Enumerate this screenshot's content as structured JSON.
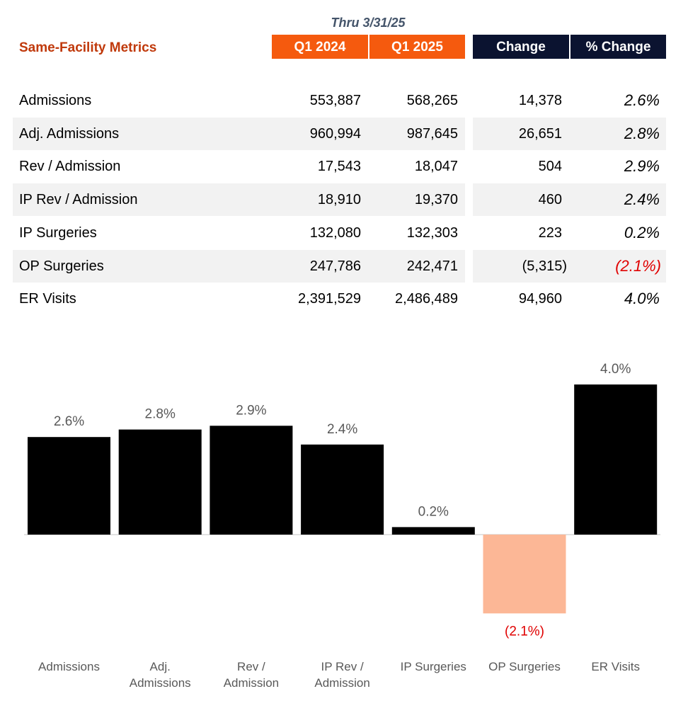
{
  "table": {
    "period_note": "Thru 3/31/25",
    "title": "Same-Facility Metrics",
    "headers": {
      "q1_2024": "Q1 2024",
      "q1_2025": "Q1 2025",
      "change": "Change",
      "pct_change": "% Change"
    },
    "rows": [
      {
        "metric": "Admissions",
        "q1_2024": "553,887",
        "q1_2025": "568,265",
        "change": "14,378",
        "pct_change": "2.6%",
        "negative": false
      },
      {
        "metric": "Adj. Admissions",
        "q1_2024": "960,994",
        "q1_2025": "987,645",
        "change": "26,651",
        "pct_change": "2.8%",
        "negative": false
      },
      {
        "metric": "Rev / Admission",
        "q1_2024": "17,543",
        "q1_2025": "18,047",
        "change": "504",
        "pct_change": "2.9%",
        "negative": false
      },
      {
        "metric": "IP Rev / Admission",
        "q1_2024": "18,910",
        "q1_2025": "19,370",
        "change": "460",
        "pct_change": "2.4%",
        "negative": false
      },
      {
        "metric": "IP Surgeries",
        "q1_2024": "132,080",
        "q1_2025": "132,303",
        "change": "223",
        "pct_change": "0.2%",
        "negative": false
      },
      {
        "metric": "OP Surgeries",
        "q1_2024": "247,786",
        "q1_2025": "242,471",
        "change": "(5,315)",
        "pct_change": "(2.1%)",
        "negative": true
      },
      {
        "metric": "ER Visits",
        "q1_2024": "2,391,529",
        "q1_2025": "2,486,489",
        "change": "94,960",
        "pct_change": "4.0%",
        "negative": false
      }
    ]
  },
  "chart_data": {
    "type": "bar",
    "categories": [
      [
        "Admissions"
      ],
      [
        "Adj.",
        "Admissions"
      ],
      [
        "Rev /",
        "Admission"
      ],
      [
        "IP Rev /",
        "Admission"
      ],
      [
        "IP Surgeries"
      ],
      [
        "OP Surgeries"
      ],
      [
        "ER Visits"
      ]
    ],
    "values": [
      2.6,
      2.8,
      2.9,
      2.4,
      0.2,
      -2.1,
      4.0
    ],
    "data_labels": [
      "2.6%",
      "2.8%",
      "2.9%",
      "2.4%",
      "0.2%",
      "(2.1%)",
      "4.0%"
    ],
    "ylim": [
      -2.1,
      4.0
    ],
    "grid": false,
    "legend": "none",
    "colors": {
      "positive": "#000000",
      "negative": "#FCB796",
      "negative_label": "#E00000"
    }
  }
}
